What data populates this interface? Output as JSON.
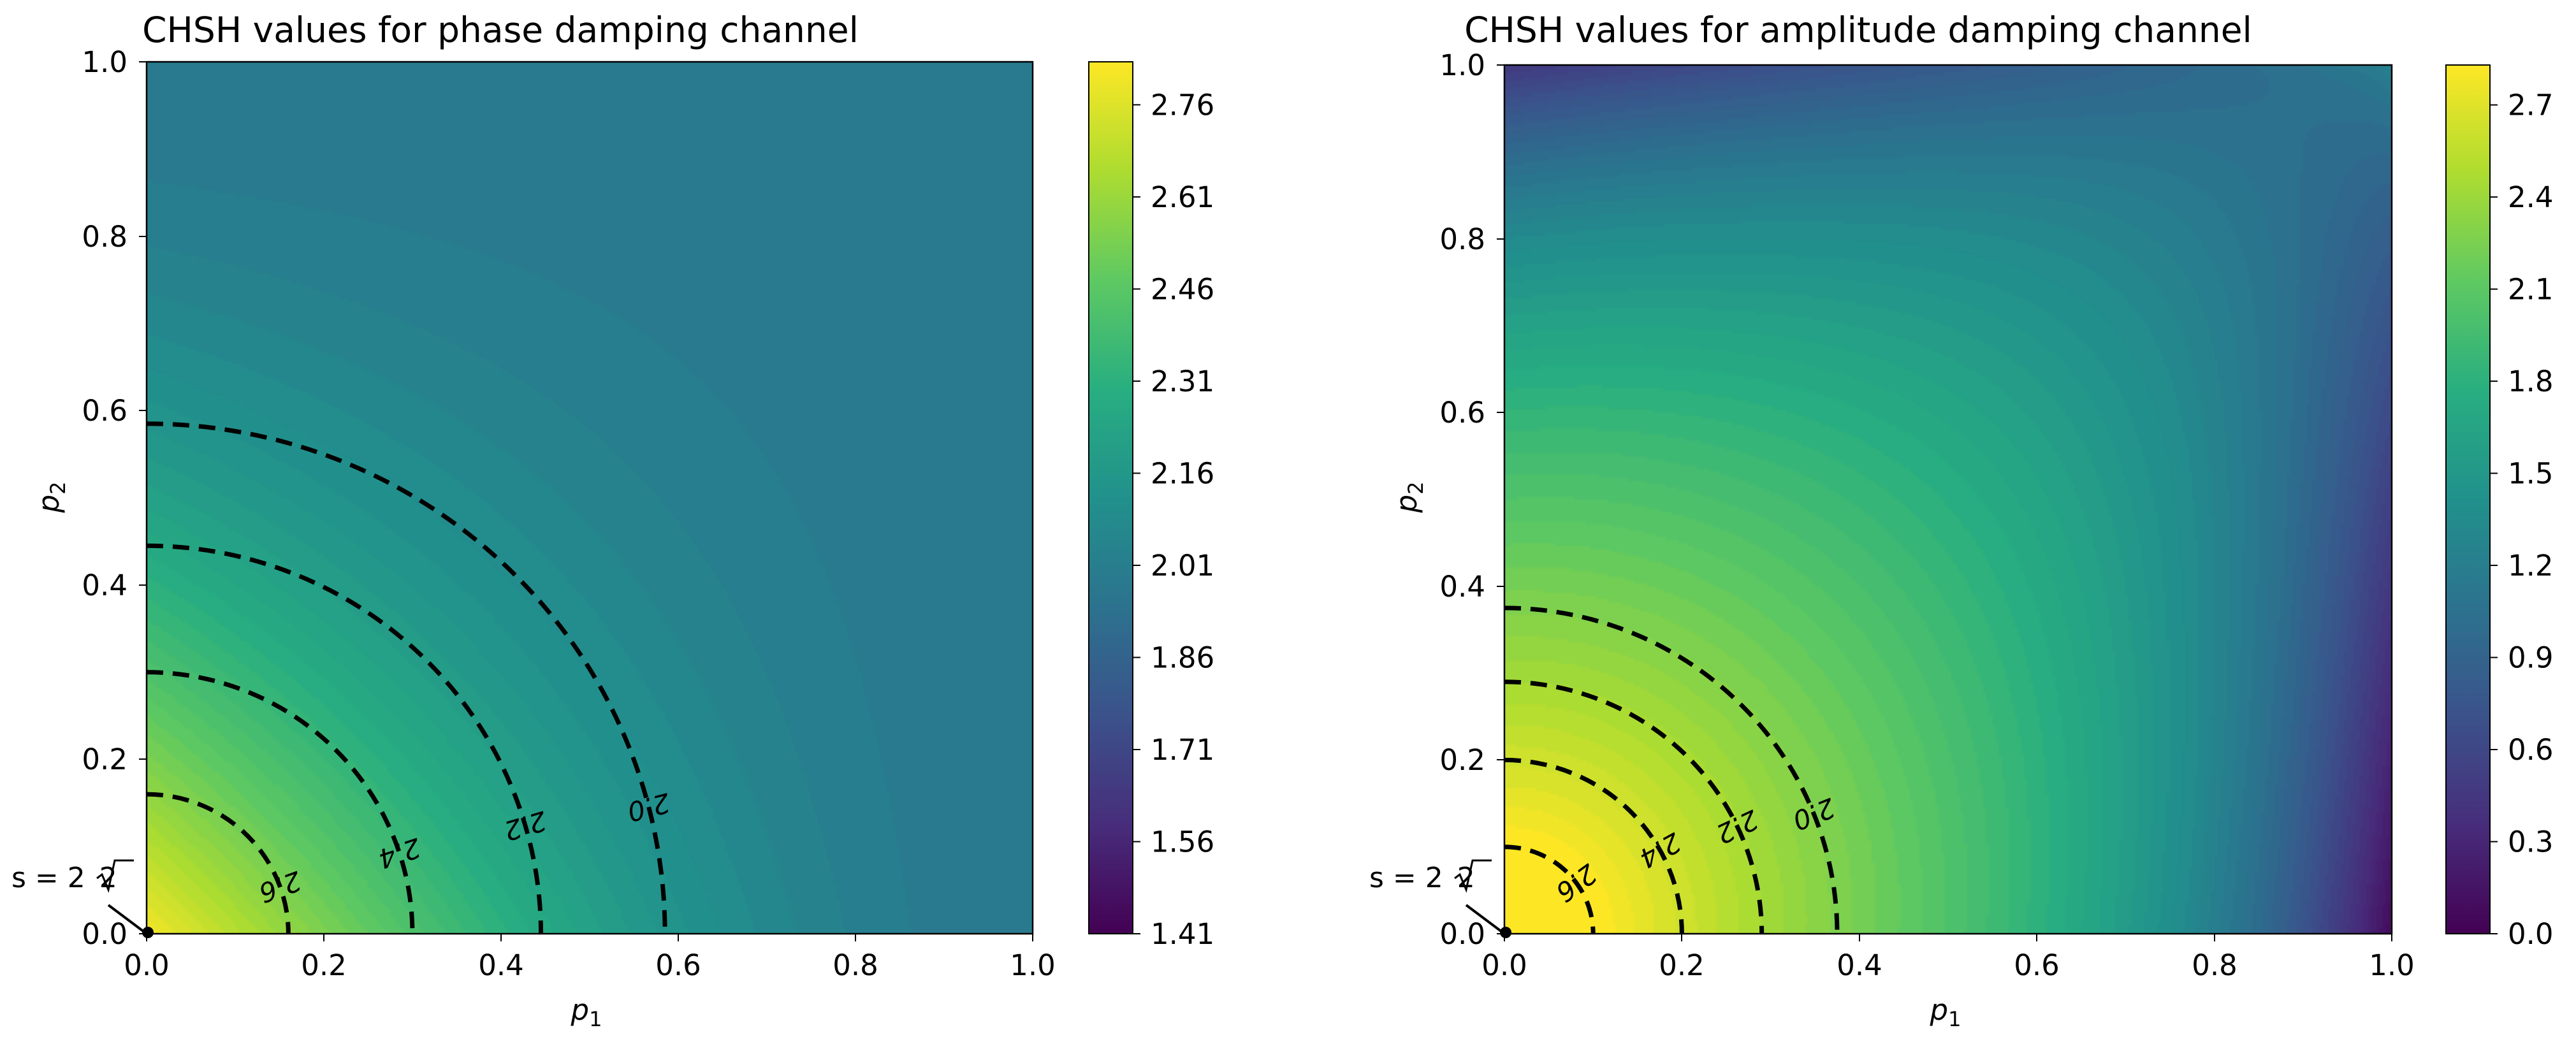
{
  "chart_data": [
    {
      "type": "heatmap",
      "subtype": "filled-contour",
      "title": "CHSH values for phase damping channel",
      "xlabel": "p",
      "xlabel_sub": "1",
      "ylabel": "p",
      "ylabel_sub": "2",
      "xlim": [
        0.0,
        1.0
      ],
      "ylim": [
        0.0,
        1.0
      ],
      "x_ticks": [
        "0.0",
        "0.2",
        "0.4",
        "0.6",
        "0.8",
        "1.0"
      ],
      "y_ticks": [
        "0.0",
        "0.2",
        "0.4",
        "0.6",
        "0.8",
        "1.0"
      ],
      "colormap": "viridis",
      "colorbar_range": [
        1.41,
        2.83
      ],
      "colorbar_ticks": [
        "1.41",
        "1.56",
        "1.71",
        "1.86",
        "2.01",
        "2.16",
        "2.31",
        "2.46",
        "2.61",
        "2.76"
      ],
      "contour_levels": [
        2.0,
        2.2,
        2.4,
        2.6
      ],
      "contour_labels": [
        "2.0",
        "2.2",
        "2.4",
        "2.6"
      ],
      "contour_intercepts": [
        0.585,
        0.445,
        0.3,
        0.16
      ],
      "annotation": "s = 2√2",
      "annotation_parts": [
        "s = 2",
        "2"
      ]
    },
    {
      "type": "heatmap",
      "subtype": "filled-contour",
      "title": "CHSH values for amplitude damping channel",
      "xlabel": "p",
      "xlabel_sub": "1",
      "ylabel": "p",
      "ylabel_sub": "2",
      "xlim": [
        0.0,
        1.0
      ],
      "ylim": [
        0.0,
        1.0
      ],
      "x_ticks": [
        "0.0",
        "0.2",
        "0.4",
        "0.6",
        "0.8",
        "1.0"
      ],
      "y_ticks": [
        "0.0",
        "0.2",
        "0.4",
        "0.6",
        "0.8",
        "1.0"
      ],
      "colormap": "viridis",
      "colorbar_range": [
        0.0,
        2.83
      ],
      "colorbar_ticks": [
        "0.0",
        "0.3",
        "0.6",
        "0.9",
        "1.2",
        "1.5",
        "1.8",
        "2.1",
        "2.4",
        "2.7"
      ],
      "contour_levels": [
        2.0,
        2.2,
        2.4,
        2.6
      ],
      "contour_labels": [
        "2.0",
        "2.2",
        "2.4",
        "2.6"
      ],
      "contour_intercepts": [
        0.375,
        0.29,
        0.2,
        0.1
      ],
      "annotation": "s = 2√2",
      "annotation_parts": [
        "s = 2",
        "2"
      ]
    }
  ]
}
